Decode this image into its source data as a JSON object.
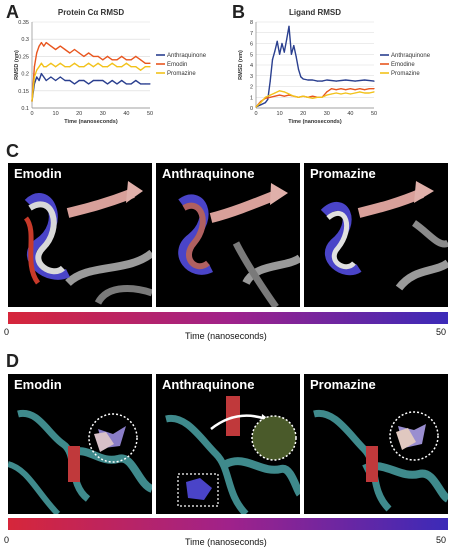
{
  "panels": {
    "a_letter": "A",
    "b_letter": "B",
    "c_letter": "C",
    "d_letter": "D"
  },
  "chart_data": [
    {
      "type": "line",
      "title": "Protein Cα RMSD",
      "xlabel": "Time (nanoseconds)",
      "ylabel": "RMSD (nm)",
      "xlim": [
        0,
        50
      ],
      "ylim": [
        0.1,
        0.35
      ],
      "x_ticks": [
        0,
        10,
        20,
        30,
        40,
        50
      ],
      "y_ticks": [
        0.1,
        0.15,
        0.2,
        0.25,
        0.3,
        0.35
      ],
      "grid": true,
      "legend_position": "right",
      "series": [
        {
          "name": "Anthraquinone",
          "color": "#2a3f8f",
          "x": [
            0,
            1,
            2,
            3,
            4,
            5,
            6,
            8,
            10,
            12,
            14,
            16,
            18,
            20,
            22,
            24,
            26,
            28,
            30,
            32,
            34,
            36,
            38,
            40,
            42,
            44,
            46,
            48,
            50
          ],
          "y": [
            0.12,
            0.17,
            0.19,
            0.18,
            0.2,
            0.19,
            0.18,
            0.19,
            0.18,
            0.19,
            0.18,
            0.18,
            0.17,
            0.18,
            0.18,
            0.17,
            0.18,
            0.18,
            0.18,
            0.17,
            0.18,
            0.17,
            0.18,
            0.17,
            0.17,
            0.18,
            0.17,
            0.17,
            0.17
          ]
        },
        {
          "name": "Emodin",
          "color": "#e8561f",
          "x": [
            0,
            1,
            2,
            3,
            4,
            5,
            6,
            8,
            10,
            12,
            14,
            16,
            18,
            20,
            22,
            24,
            26,
            28,
            30,
            32,
            34,
            36,
            38,
            40,
            42,
            44,
            46,
            48,
            50
          ],
          "y": [
            0.12,
            0.22,
            0.26,
            0.28,
            0.29,
            0.28,
            0.29,
            0.28,
            0.27,
            0.28,
            0.27,
            0.26,
            0.27,
            0.26,
            0.25,
            0.26,
            0.25,
            0.25,
            0.24,
            0.25,
            0.24,
            0.24,
            0.25,
            0.24,
            0.24,
            0.25,
            0.24,
            0.23,
            0.23
          ]
        },
        {
          "name": "Promazine",
          "color": "#f2c21b",
          "x": [
            0,
            1,
            2,
            3,
            4,
            5,
            6,
            8,
            10,
            12,
            14,
            16,
            18,
            20,
            22,
            24,
            26,
            28,
            30,
            32,
            34,
            36,
            38,
            40,
            42,
            44,
            46,
            48,
            50
          ],
          "y": [
            0.12,
            0.19,
            0.21,
            0.22,
            0.23,
            0.22,
            0.22,
            0.23,
            0.22,
            0.23,
            0.22,
            0.22,
            0.23,
            0.22,
            0.22,
            0.23,
            0.22,
            0.23,
            0.22,
            0.22,
            0.23,
            0.22,
            0.22,
            0.23,
            0.22,
            0.22,
            0.21,
            0.22,
            0.22
          ]
        }
      ]
    },
    {
      "type": "line",
      "title": "Ligand RMSD",
      "xlabel": "Time (nanoseconds)",
      "ylabel": "RMSD (nm)",
      "xlim": [
        0,
        50
      ],
      "ylim": [
        0,
        8
      ],
      "x_ticks": [
        0,
        10,
        20,
        30,
        40,
        50
      ],
      "y_ticks": [
        0,
        1,
        2,
        3,
        4,
        5,
        6,
        7,
        8
      ],
      "grid": true,
      "legend_position": "right",
      "series": [
        {
          "name": "Anthraquinone",
          "color": "#2a3f8f",
          "x": [
            0,
            2,
            4,
            5,
            6,
            7,
            8,
            9,
            10,
            11,
            12,
            13,
            14,
            15,
            16,
            17,
            18,
            19,
            20,
            22,
            24,
            26,
            28,
            30,
            34,
            38,
            42,
            46,
            50
          ],
          "y": [
            0.1,
            0.3,
            0.5,
            0.8,
            2.5,
            4.5,
            5.3,
            6.2,
            5.0,
            6.0,
            5.2,
            6.4,
            7.6,
            5.0,
            5.8,
            4.8,
            3.6,
            2.9,
            2.7,
            2.6,
            2.6,
            2.5,
            2.5,
            2.6,
            2.5,
            2.6,
            2.5,
            2.6,
            2.5
          ]
        },
        {
          "name": "Emodine",
          "color": "#e8561f",
          "x": [
            0,
            2,
            4,
            6,
            8,
            10,
            12,
            14,
            16,
            18,
            20,
            22,
            24,
            26,
            28,
            30,
            32,
            34,
            36,
            38,
            40,
            42,
            44,
            46,
            48,
            50
          ],
          "y": [
            0.1,
            0.6,
            0.9,
            1.0,
            1.1,
            1.2,
            1.1,
            1.2,
            1.1,
            1.0,
            1.1,
            1.0,
            1.1,
            1.0,
            1.0,
            1.5,
            1.8,
            1.7,
            1.8,
            1.7,
            1.8,
            1.7,
            1.8,
            1.7,
            1.8,
            1.8
          ]
        },
        {
          "name": "Promazine",
          "color": "#f2c21b",
          "x": [
            0,
            2,
            4,
            6,
            8,
            10,
            12,
            14,
            16,
            18,
            20,
            22,
            24,
            26,
            28,
            30,
            32,
            34,
            36,
            38,
            40,
            42,
            44,
            46,
            48,
            50
          ],
          "y": [
            0.1,
            0.5,
            1.0,
            1.2,
            1.4,
            1.6,
            1.5,
            1.3,
            1.1,
            1.0,
            1.1,
            1.0,
            0.9,
            1.0,
            1.0,
            1.2,
            1.3,
            1.4,
            1.3,
            1.4,
            1.3,
            1.4,
            1.5,
            1.4,
            1.4,
            1.5
          ]
        }
      ]
    }
  ],
  "panel_c": {
    "labels": [
      "Emodin",
      "Anthraquinone",
      "Promazine"
    ],
    "timebar": {
      "start": "0",
      "end": "50",
      "label": "Time (nanoseconds)",
      "color_start": "#d6263a",
      "color_end": "#3b2ab8"
    }
  },
  "panel_d": {
    "labels": [
      "Emodin",
      "Anthraquinone",
      "Promazine"
    ],
    "timebar": {
      "start": "0",
      "end": "50",
      "label": "Time (nanoseconds)",
      "color_start": "#d6263a",
      "color_end": "#3b2ab8"
    }
  }
}
